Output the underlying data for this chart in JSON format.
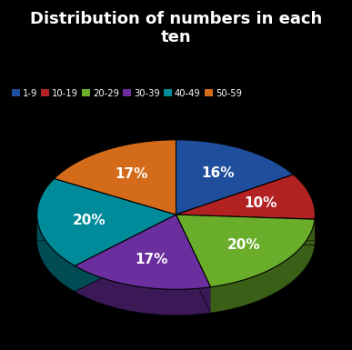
{
  "title": "Distribution of numbers in each\nten",
  "labels": [
    "1-9",
    "10-19",
    "20-29",
    "30-39",
    "40-49",
    "50-59"
  ],
  "values": [
    16,
    10,
    20,
    17,
    20,
    17
  ],
  "colors": [
    "#1F4E9C",
    "#B22222",
    "#6AAD2B",
    "#6B2E9E",
    "#008B9B",
    "#D46B1A"
  ],
  "background_color": "#000000",
  "text_color": "#ffffff",
  "title_fontsize": 13,
  "pct_fontsize": 11,
  "startangle": 90
}
